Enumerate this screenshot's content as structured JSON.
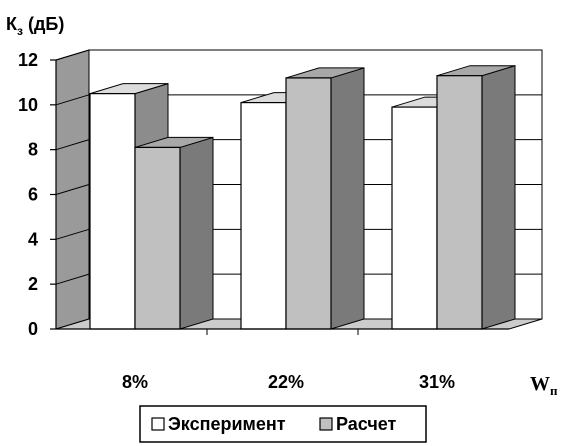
{
  "chart_data": {
    "type": "bar",
    "variant": "3d-clustered",
    "categories": [
      "8%",
      "22%",
      "31%"
    ],
    "series": [
      {
        "name": "Эксперимент",
        "values": [
          10.5,
          10.1,
          9.9
        ]
      },
      {
        "name": "Расчет",
        "values": [
          8.1,
          11.2,
          11.3
        ]
      }
    ],
    "ylabel": {
      "main": "К",
      "sub": "з",
      "suffix": " (дБ)"
    },
    "xlabel": {
      "main": "W",
      "sub": "п"
    },
    "ylim": [
      0,
      12
    ],
    "yticks": [
      "0",
      "2",
      "4",
      "6",
      "8",
      "10",
      "12"
    ],
    "grid": true,
    "legend_position": "bottom",
    "colors": {
      "series_fronts": [
        "#ffffff",
        "#c0c0c0"
      ],
      "series_sides": [
        "#8c8c8c",
        "#7a7a7a"
      ],
      "series_tops": [
        "#dcdcdc",
        "#a8a8a8"
      ],
      "wall": "#9a9a9a",
      "floor": "#cccccc",
      "grid": "#000000"
    }
  }
}
